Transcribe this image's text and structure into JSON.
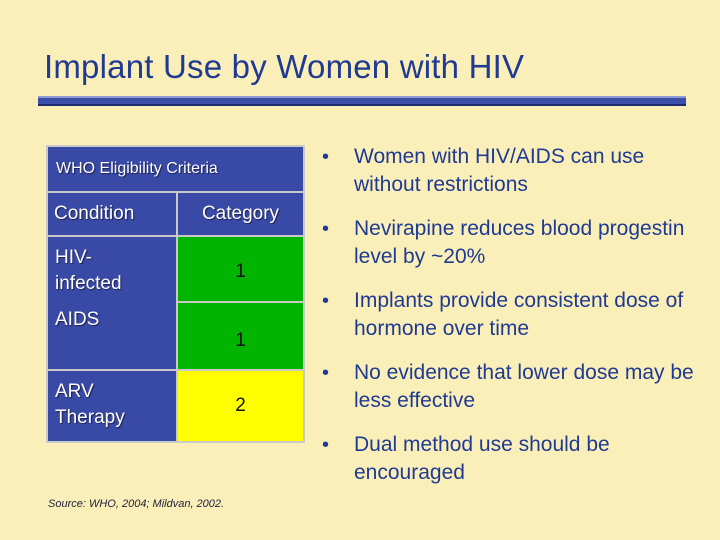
{
  "slide": {
    "title": "Implant Use by Women with HIV",
    "source": "Source: WHO, 2004; Mildvan, 2002."
  },
  "table": {
    "header": "WHO Eligibility Criteria",
    "columns": [
      "Condition",
      "Category"
    ],
    "rows": [
      {
        "condition_line1": "HIV-",
        "condition_line2": "infected",
        "condition_line3": "AIDS",
        "category_a": "1",
        "category_b": "1"
      },
      {
        "condition_line1": "ARV",
        "condition_line2": "Therapy",
        "category": "2"
      }
    ]
  },
  "bullets": [
    "Women with HIV/AIDS can use without restrictions",
    "Nevirapine reduces blood progestin level by ~20%",
    "Implants provide consistent dose of hormone over time",
    "No evidence that lower dose may be less effective",
    "Dual method use should be encouraged"
  ],
  "colors": {
    "background": "#fbefb9",
    "title": "#1f3a93",
    "table_blue": "#3949a6",
    "category_green": "#00b400",
    "category_yellow": "#ffff00"
  },
  "icons": {
    "bullet": "bullet-dot-icon"
  }
}
